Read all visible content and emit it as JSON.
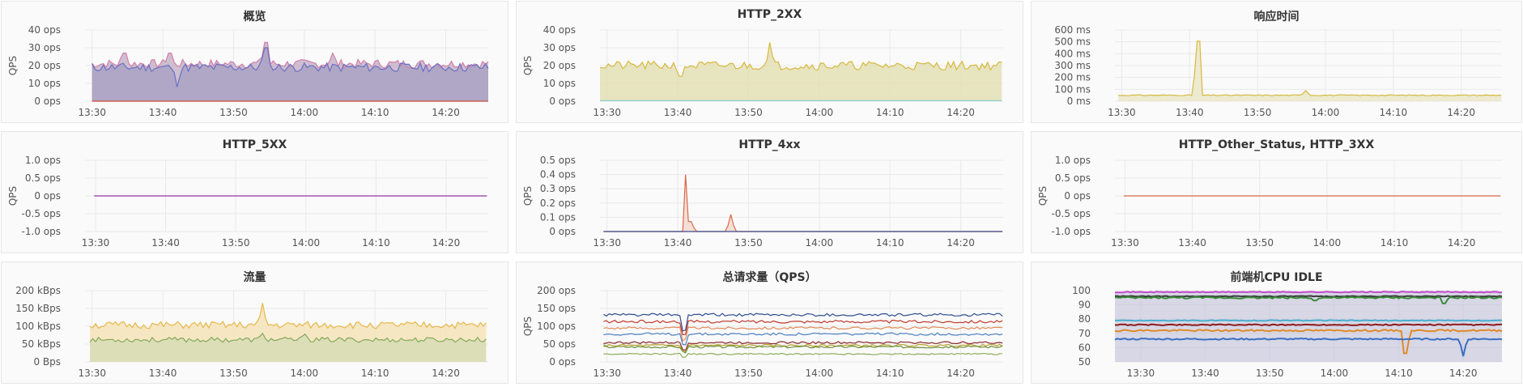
{
  "panels": [
    {
      "id": "overview",
      "title": "概览",
      "chart_data": {
        "type": "line",
        "ylabel": "QPS",
        "y_ticks": [
          "40 ops",
          "30 ops",
          "20 ops",
          "10 ops",
          "0 ops"
        ],
        "y_tick_values": [
          40,
          30,
          20,
          10,
          0
        ],
        "ylim": [
          0,
          40
        ],
        "x_ticks": [
          "13:30",
          "13:40",
          "13:50",
          "14:00",
          "14:10",
          "14:20"
        ],
        "x_tick_minutes": [
          0,
          10,
          20,
          30,
          40,
          50
        ],
        "xlim_minutes": [
          -1,
          56
        ],
        "start_minute": 0,
        "end_minute": 56,
        "grid": true,
        "series": [
          {
            "color": "#d47fa8",
            "base": 21,
            "noise": 2.5,
            "fill": "#c6b3c8",
            "spikes": [
              [
                4.5,
                27
              ],
              [
                11,
                27
              ],
              [
                24.5,
                33
              ],
              [
                34,
                27
              ]
            ],
            "seed": 7
          },
          {
            "color": "#6a6fc4",
            "base": 19,
            "noise": 2.5,
            "fill": "#a9a3c3",
            "spikes": [
              [
                12,
                8
              ],
              [
                24.5,
                30
              ]
            ],
            "seed": 11
          },
          {
            "color": "#cf4b3c",
            "base": 0,
            "noise": 0,
            "seed": 3
          }
        ]
      }
    },
    {
      "id": "http2xx",
      "title": "HTTP_2XX",
      "chart_data": {
        "type": "line",
        "ylabel": "QPS",
        "y_ticks": [
          "40 ops",
          "30 ops",
          "20 ops",
          "10 ops",
          "0 ops"
        ],
        "y_tick_values": [
          40,
          30,
          20,
          10,
          0
        ],
        "ylim": [
          0,
          40
        ],
        "x_ticks": [
          "13:30",
          "13:40",
          "13:50",
          "14:00",
          "14:10",
          "14:20"
        ],
        "x_tick_minutes": [
          0,
          10,
          20,
          30,
          40,
          50
        ],
        "xlim_minutes": [
          -1,
          56
        ],
        "start_minute": -1,
        "end_minute": 56,
        "grid": true,
        "series": [
          {
            "color": "#d6b93e",
            "base": 20,
            "noise": 2.5,
            "fill": "#e3dfb5",
            "spikes": [
              [
                10.5,
                14
              ],
              [
                23,
                33
              ]
            ],
            "seed": 21
          },
          {
            "color": "#7fd1c9",
            "base": 0.3,
            "noise": 0,
            "seed": 5
          }
        ]
      }
    },
    {
      "id": "response_time",
      "title": "响应时间",
      "chart_data": {
        "type": "line",
        "ylabel": "",
        "y_ticks": [
          "600 ms",
          "500 ms",
          "400 ms",
          "300 ms",
          "200 ms",
          "100 ms",
          "0 ms"
        ],
        "y_tick_values": [
          600,
          500,
          400,
          300,
          200,
          100,
          0
        ],
        "ylim": [
          0,
          600
        ],
        "x_ticks": [
          "13:30",
          "13:40",
          "13:50",
          "14:00",
          "14:10",
          "14:20"
        ],
        "x_tick_minutes": [
          0,
          10,
          20,
          30,
          40,
          50
        ],
        "xlim_minutes": [
          -1,
          56
        ],
        "start_minute": -0.5,
        "end_minute": 56,
        "grid": true,
        "series": [
          {
            "color": "#d6b93e",
            "base": 50,
            "noise": 4,
            "fill": "#eae6c8",
            "spikes": [
              [
                11.3,
                505
              ],
              [
                27,
                90
              ]
            ],
            "seed": 31
          }
        ]
      }
    },
    {
      "id": "http5xx",
      "title": "HTTP_5XX",
      "chart_data": {
        "type": "line",
        "ylabel": "QPS",
        "y_ticks": [
          "1.0 ops",
          "0.5 ops",
          "0 ops",
          "-0.5 ops",
          "-1.0 ops"
        ],
        "y_tick_values": [
          1,
          0.5,
          0,
          -0.5,
          -1
        ],
        "ylim": [
          -1,
          1
        ],
        "x_ticks": [
          "13:30",
          "13:40",
          "13:50",
          "14:00",
          "14:10",
          "14:20"
        ],
        "x_tick_minutes": [
          0,
          10,
          20,
          30,
          40,
          50
        ],
        "xlim_minutes": [
          -1.5,
          56
        ],
        "start_minute": -0.2,
        "end_minute": 56,
        "grid": true,
        "series": [
          {
            "color": "#8a3aa0",
            "base": 0,
            "noise": 0,
            "seed": 1
          }
        ]
      }
    },
    {
      "id": "http4xx",
      "title": "HTTP_4xx",
      "chart_data": {
        "type": "line",
        "ylabel": "QPS",
        "y_ticks": [
          "0.5 ops",
          "0.4 ops",
          "0.3 ops",
          "0.2 ops",
          "0.1 ops",
          "0 ops"
        ],
        "y_tick_values": [
          0.5,
          0.4,
          0.3,
          0.2,
          0.1,
          0
        ],
        "ylim": [
          0,
          0.5
        ],
        "x_ticks": [
          "13:30",
          "13:40",
          "13:50",
          "14:00",
          "14:10",
          "14:20"
        ],
        "x_tick_minutes": [
          0,
          10,
          20,
          30,
          40,
          50
        ],
        "xlim_minutes": [
          -1,
          56
        ],
        "start_minute": -0.5,
        "end_minute": 56,
        "grid": true,
        "series": [
          {
            "color": "#d9684a",
            "base": 0,
            "noise": 0,
            "fill": "#f3d9cf",
            "spikes": [
              [
                11.4,
                0.4
              ],
              [
                11.8,
                0.07
              ],
              [
                17.5,
                0.12
              ]
            ],
            "seed": 41
          },
          {
            "color": "#3b4c8f",
            "base": 0,
            "noise": 0,
            "seed": 2
          }
        ]
      }
    },
    {
      "id": "http_other_3xx",
      "title": "HTTP_Other_Status, HTTP_3XX",
      "chart_data": {
        "type": "line",
        "ylabel": "QPS",
        "y_ticks": [
          "1.0 ops",
          "0.5 ops",
          "0 ops",
          "-0.5 ops",
          "-1.0 ops"
        ],
        "y_tick_values": [
          1,
          0.5,
          0,
          -0.5,
          -1
        ],
        "ylim": [
          -1,
          1
        ],
        "x_ticks": [
          "13:30",
          "13:40",
          "13:50",
          "14:00",
          "14:10",
          "14:20"
        ],
        "x_tick_minutes": [
          0,
          10,
          20,
          30,
          40,
          50
        ],
        "xlim_minutes": [
          -1.5,
          56
        ],
        "start_minute": -0.2,
        "end_minute": 56,
        "grid": true,
        "series": [
          {
            "color": "#d9684a",
            "base": 0,
            "noise": 0,
            "seed": 9
          }
        ]
      }
    },
    {
      "id": "traffic",
      "title": "流量",
      "chart_data": {
        "type": "line",
        "ylabel": "",
        "y_ticks": [
          "200 kBps",
          "150 kBps",
          "100 kBps",
          "50 kBps",
          "0 Bps"
        ],
        "y_tick_values": [
          200,
          150,
          100,
          50,
          0
        ],
        "ylim": [
          0,
          200
        ],
        "x_ticks": [
          "13:30",
          "13:40",
          "13:50",
          "14:00",
          "14:10",
          "14:20"
        ],
        "x_tick_minutes": [
          0,
          10,
          20,
          30,
          40,
          50
        ],
        "xlim_minutes": [
          -1,
          56
        ],
        "start_minute": -0.3,
        "end_minute": 56,
        "grid": true,
        "series": [
          {
            "color": "#e6b84a",
            "base": 103,
            "noise": 10,
            "fill": "#f4e3b8",
            "spikes": [
              [
                24,
                165
              ]
            ],
            "seed": 51
          },
          {
            "color": "#86a85a",
            "base": 62,
            "noise": 7,
            "fill": "#d7dcb6",
            "spikes": [
              [
                24,
                80
              ],
              [
                30,
                78
              ]
            ],
            "seed": 53
          }
        ]
      }
    },
    {
      "id": "total_requests",
      "title": "总请求量（QPS）",
      "chart_data": {
        "type": "line",
        "ylabel": "QPS",
        "y_ticks": [
          "200 ops",
          "150 ops",
          "100 ops",
          "50 ops",
          "0 ops"
        ],
        "y_tick_values": [
          200,
          150,
          100,
          50,
          0
        ],
        "ylim": [
          0,
          200
        ],
        "x_ticks": [
          "13:30",
          "13:40",
          "13:50",
          "14:00",
          "14:10",
          "14:20"
        ],
        "x_tick_minutes": [
          0,
          10,
          20,
          30,
          40,
          50
        ],
        "xlim_minutes": [
          -1,
          56
        ],
        "start_minute": -0.5,
        "end_minute": 56,
        "grid": true,
        "dip_minute": 11,
        "series": [
          {
            "color": "#2f4f8f",
            "base": 132,
            "noise": 4,
            "seed": 61
          },
          {
            "color": "#c0392b",
            "base": 113,
            "noise": 4,
            "seed": 62
          },
          {
            "color": "#e08a5a",
            "base": 95,
            "noise": 3.5,
            "seed": 63
          },
          {
            "color": "#4a7fc1",
            "base": 78,
            "noise": 3.5,
            "seed": 64
          },
          {
            "color": "#8b2a2a",
            "base": 54,
            "noise": 3,
            "seed": 65
          },
          {
            "color": "#b8a02a",
            "base": 46,
            "noise": 3,
            "seed": 66
          },
          {
            "color": "#6a8f3a",
            "base": 42,
            "noise": 3,
            "seed": 67
          },
          {
            "color": "#8fae5a",
            "base": 22,
            "noise": 2,
            "seed": 68
          }
        ]
      }
    },
    {
      "id": "frontend_cpu_idle",
      "title": "前端机CPU IDLE",
      "chart_data": {
        "type": "line",
        "ylabel": "",
        "y_ticks": [
          "100",
          "90",
          "80",
          "70",
          "60",
          "50"
        ],
        "y_tick_values": [
          100,
          90,
          80,
          70,
          60,
          50
        ],
        "ylim": [
          50,
          100
        ],
        "x_ticks": [
          "13:30",
          "13:40",
          "13:50",
          "14:00",
          "14:10",
          "14:20"
        ],
        "x_tick_minutes": [
          0,
          10,
          20,
          30,
          40,
          50
        ],
        "xlim_minutes": [
          -4,
          56
        ],
        "start_minute": -4,
        "end_minute": 56,
        "grid": true,
        "series": [
          {
            "color": "#c04ac8",
            "base": 99,
            "noise": 0.3,
            "seed": 71
          },
          {
            "color": "#3a3a3a",
            "base": 96,
            "noise": 0.3,
            "seed": 72
          },
          {
            "color": "#3a8a3a",
            "base": 95,
            "noise": 0.6,
            "spikes": [
              [
                27,
                93
              ],
              [
                47,
                91
              ]
            ],
            "seed": 73
          },
          {
            "color": "#4ab0d0",
            "base": 79,
            "noise": 0.3,
            "seed": 74
          },
          {
            "color": "#8b1a1a",
            "base": 76,
            "noise": 0.4,
            "seed": 75
          },
          {
            "color": "#e08a2a",
            "base": 72,
            "noise": 0.6,
            "spikes": [
              [
                41,
                56
              ]
            ],
            "seed": 76
          },
          {
            "color": "#3a6fc1",
            "base": 66,
            "noise": 0.5,
            "spikes": [
              [
                50,
                54
              ]
            ],
            "seed": 77
          }
        ]
      }
    }
  ]
}
